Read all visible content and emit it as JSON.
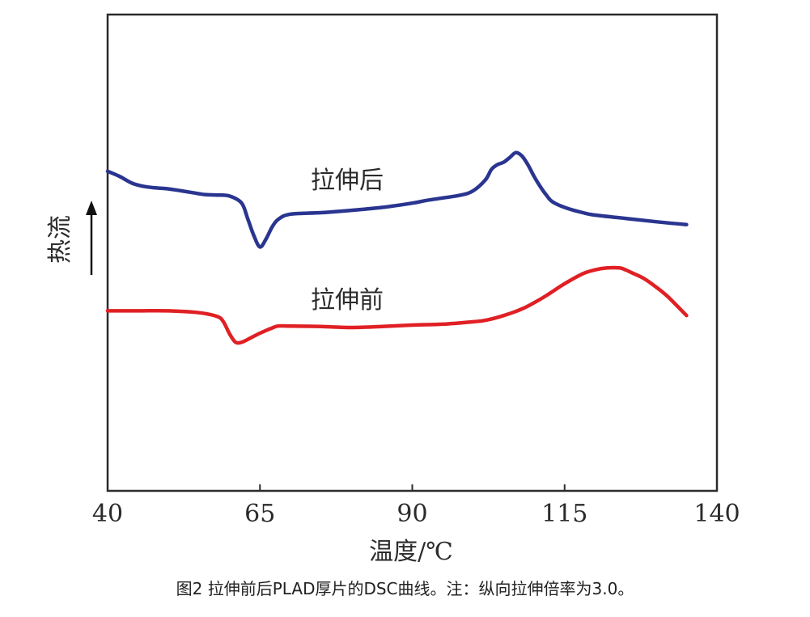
{
  "chart_data": {
    "type": "line",
    "title": "",
    "xlabel": "温度/℃",
    "ylabel": "热流",
    "xlim": [
      40,
      140
    ],
    "ylim": [
      0,
      100
    ],
    "xticks": [
      "40",
      "65",
      "90",
      "115",
      "140"
    ],
    "grid": false,
    "series": [
      {
        "name": "拉伸后",
        "color": "#2a3590",
        "x": [
          40,
          42,
          44,
          46,
          48,
          50,
          52,
          54,
          56,
          58,
          60,
          62,
          63,
          64,
          65,
          66,
          67,
          68,
          70,
          75,
          80,
          85,
          90,
          92,
          95,
          98,
          100,
          102,
          103,
          104,
          105,
          106,
          107,
          108,
          109,
          110,
          111,
          112,
          113,
          115,
          118,
          120,
          125,
          130,
          135
        ],
        "y": [
          67.1,
          66.0,
          64.6,
          63.9,
          63.6,
          63.4,
          63.0,
          62.6,
          62.2,
          62.1,
          61.9,
          60.4,
          57.1,
          53.6,
          51.2,
          52.9,
          55.4,
          57.0,
          58.1,
          58.4,
          58.9,
          59.5,
          60.4,
          60.9,
          61.5,
          62.1,
          63.0,
          65.3,
          67.5,
          68.5,
          69.0,
          70.0,
          71.0,
          70.3,
          68.4,
          66.0,
          63.9,
          62.1,
          60.7,
          59.5,
          58.4,
          57.9,
          57.2,
          56.5,
          55.9
        ]
      },
      {
        "name": "拉伸前",
        "color": "#e02024",
        "x": [
          40,
          45,
          50,
          55,
          58,
          59,
          60,
          61,
          62,
          63,
          65,
          67,
          68,
          70,
          75,
          80,
          85,
          90,
          95,
          100,
          102,
          105,
          108,
          110,
          112,
          115,
          118,
          120,
          122,
          124,
          125,
          126,
          128,
          130,
          132,
          135
        ],
        "y": [
          37.8,
          37.8,
          37.8,
          37.4,
          36.6,
          35.5,
          33.0,
          31.2,
          31.2,
          31.8,
          33.1,
          34.2,
          34.6,
          34.6,
          34.5,
          34.3,
          34.5,
          34.8,
          35.0,
          35.5,
          35.8,
          36.8,
          38.2,
          39.5,
          41.0,
          43.5,
          45.6,
          46.4,
          46.8,
          46.8,
          46.4,
          45.8,
          44.6,
          42.8,
          40.7,
          36.8
        ]
      }
    ],
    "annotations": [
      "拉伸后",
      "拉伸前"
    ]
  },
  "caption": "图2 拉伸前后PLAD厚片的DSC曲线。注：纵向拉伸倍率为3.0。"
}
